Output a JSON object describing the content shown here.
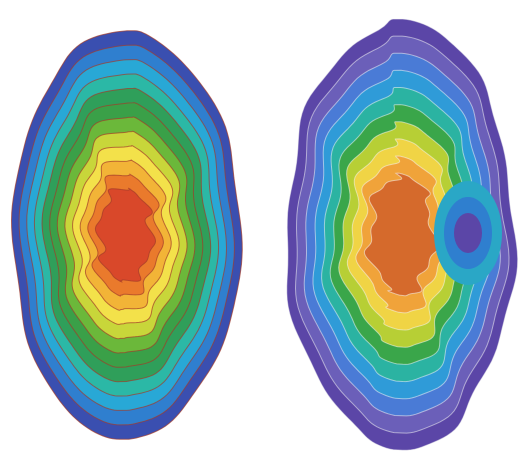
{
  "image": {
    "panels": [
      {
        "id": "left",
        "colors": [
          "#3a4fb0",
          "#2f7fcf",
          "#28a8d6",
          "#2bb8a6",
          "#2f9f5a",
          "#3aa048",
          "#6bb83a",
          "#c8d63a",
          "#f3e14a",
          "#f2b437",
          "#ea7a2c",
          "#d9482a"
        ],
        "contour_line": "#a33a2a"
      },
      {
        "id": "right",
        "colors": [
          "#5b46a7",
          "#6b5fb9",
          "#4a7bd6",
          "#2f9bd8",
          "#2bb3a2",
          "#3aa64a",
          "#b7cf35",
          "#f0d445",
          "#f0a33a",
          "#d56a2c"
        ],
        "contour_line": "#f4f4f4"
      }
    ]
  }
}
